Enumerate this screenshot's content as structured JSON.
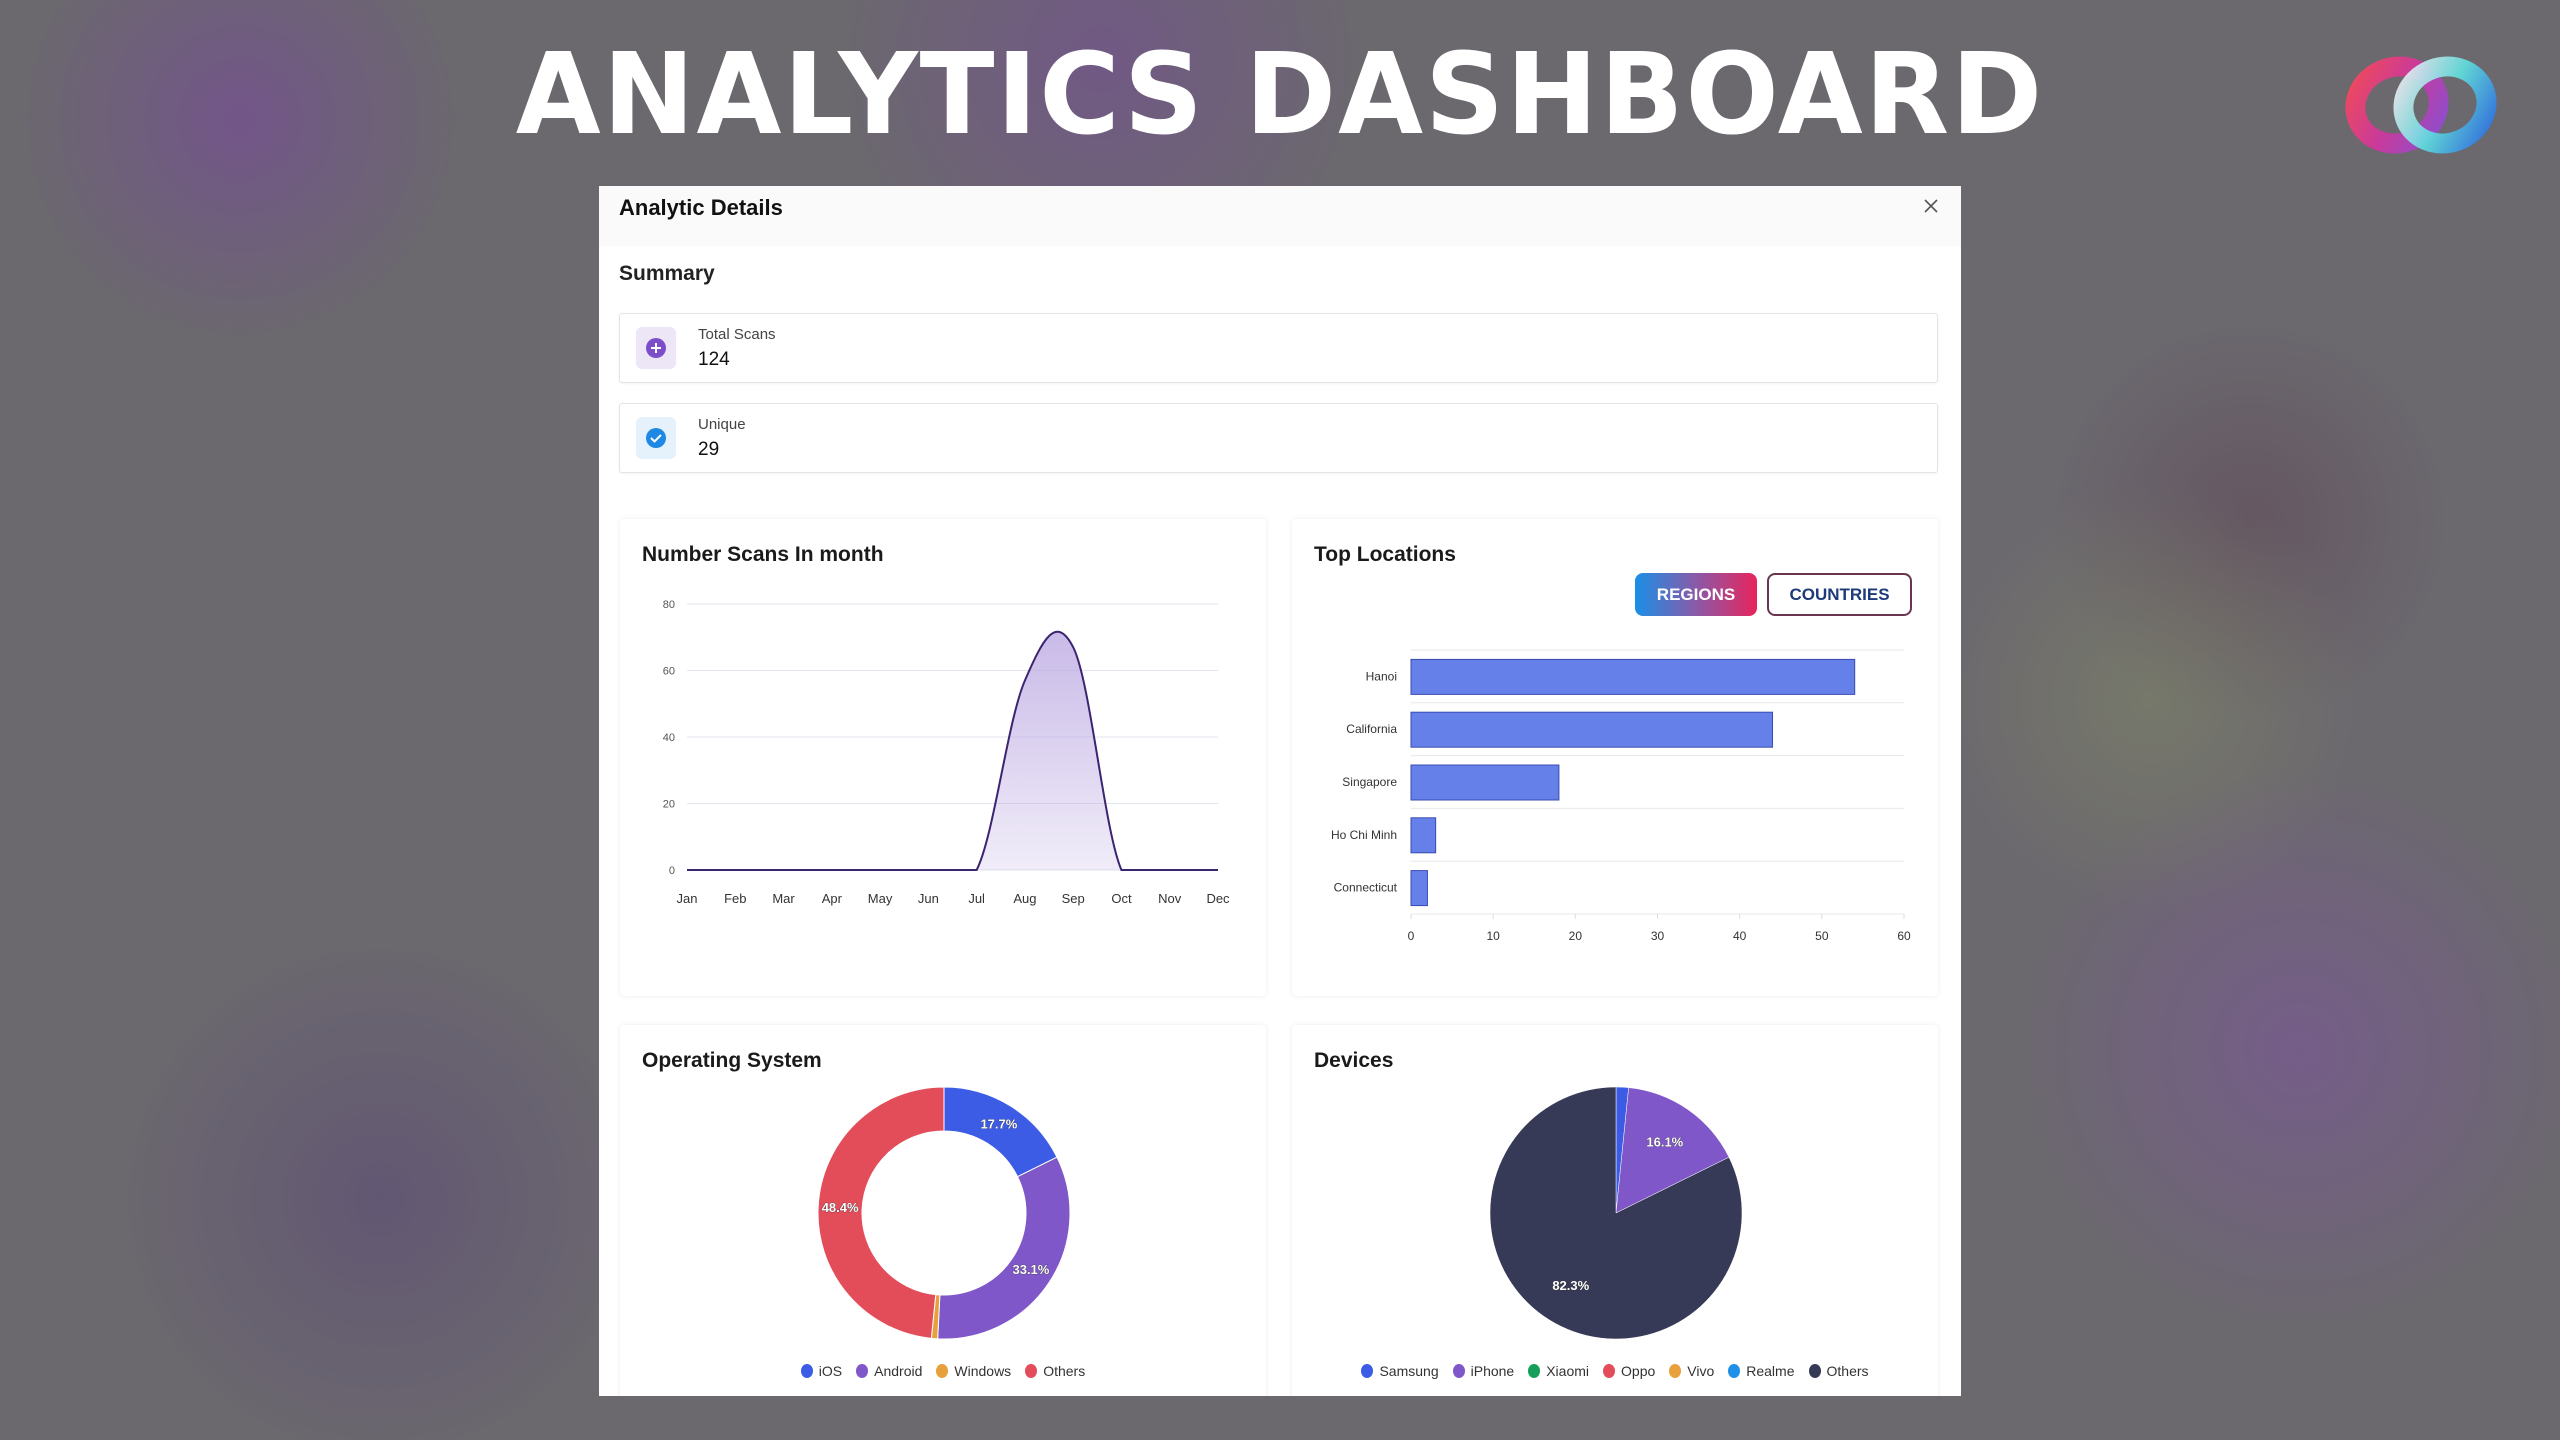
{
  "headline": "ANALYTICS DASHBOARD",
  "modal": {
    "title": "Analytic Details",
    "close_icon": "close-icon"
  },
  "summary": {
    "title": "Summary",
    "stats": [
      {
        "label": "Total Scans",
        "value": "124",
        "icon": "plus-circle-icon",
        "color": "#7b4fc9",
        "bg": "#ece6f6"
      },
      {
        "label": "Unique",
        "value": "29",
        "icon": "check-circle-icon",
        "color": "#1e88e5",
        "bg": "#e5f2fc"
      }
    ]
  },
  "colors": {
    "line": "#3b2470",
    "fill": "#b7a3e0",
    "bar": "#6680ea",
    "bar_border": "#3a4bb0"
  },
  "chart_data": [
    {
      "type": "area",
      "title": "Number Scans In month",
      "categories": [
        "Jan",
        "Feb",
        "Mar",
        "Apr",
        "May",
        "Jun",
        "Jul",
        "Aug",
        "Sep",
        "Oct",
        "Nov",
        "Dec"
      ],
      "values": [
        0,
        0,
        0,
        0,
        0,
        0,
        0,
        57,
        67,
        0,
        0,
        0
      ],
      "ylim": [
        0,
        80
      ],
      "yticks": [
        0,
        20,
        40,
        60,
        80
      ],
      "grid": true
    },
    {
      "type": "bar",
      "orientation": "horizontal",
      "title": "Top Locations",
      "toggle": [
        "REGIONS",
        "COUNTRIES"
      ],
      "active_toggle": "REGIONS",
      "categories": [
        "Hanoi",
        "California",
        "Singapore",
        "Ho Chi Minh",
        "Connecticut"
      ],
      "values": [
        54,
        44,
        18,
        3,
        2
      ],
      "xlim": [
        0,
        60
      ],
      "xticks": [
        0,
        10,
        20,
        30,
        40,
        50,
        60
      ]
    },
    {
      "type": "pie",
      "variant": "donut",
      "title": "Operating System",
      "labels": [
        "iOS",
        "Android",
        "Windows",
        "Others"
      ],
      "values": [
        17.7,
        33.1,
        0.8,
        48.4
      ],
      "value_labels": [
        "17.7%",
        "33.1%",
        "",
        "48.4%"
      ],
      "colors": [
        "#3d5ce6",
        "#7f57c9",
        "#e8a03c",
        "#e34d5a"
      ],
      "legend": "bottom"
    },
    {
      "type": "pie",
      "title": "Devices",
      "labels": [
        "Samsung",
        "iPhone",
        "Xiaomi",
        "Oppo",
        "Vivo",
        "Realme",
        "Others"
      ],
      "values": [
        1.6,
        16.1,
        0,
        0,
        0,
        0,
        82.3
      ],
      "value_labels": [
        "",
        "16.1%",
        "",
        "",
        "",
        "",
        "82.3%"
      ],
      "colors": [
        "#3d5ce6",
        "#7f57c9",
        "#14a05a",
        "#e34d5a",
        "#e8a03c",
        "#1e90e8",
        "#373a56"
      ],
      "legend": "bottom"
    }
  ]
}
